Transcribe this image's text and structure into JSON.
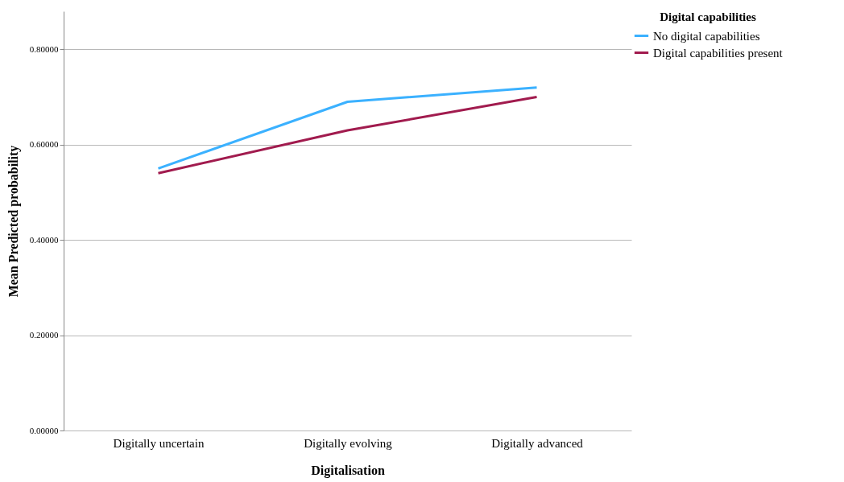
{
  "chart_data": {
    "type": "line",
    "xlabel": "Digitalisation",
    "ylabel": "Mean Predicted probability",
    "legend_title": "Digital capabilities",
    "categories": [
      "Digitally uncertain",
      "Digitally evolving",
      "Digitally advanced"
    ],
    "series": [
      {
        "name": "No digital capabilities",
        "color": "#3bb1ff",
        "values": [
          0.55,
          0.69,
          0.72
        ]
      },
      {
        "name": "Digital capabilities present",
        "color": "#a11b4e",
        "values": [
          0.54,
          0.63,
          0.7
        ]
      }
    ],
    "ylim": [
      0,
      0.88
    ],
    "yticks": [
      {
        "value": 0,
        "label": "0.00000"
      },
      {
        "value": 0.2,
        "label": "0.20000"
      },
      {
        "value": 0.4,
        "label": "0.40000"
      },
      {
        "value": 0.6,
        "label": "0.60000"
      },
      {
        "value": 0.8,
        "label": "0.80000"
      }
    ],
    "grid": "y",
    "legend": "top right",
    "marker": "none",
    "line_style": "solid"
  }
}
